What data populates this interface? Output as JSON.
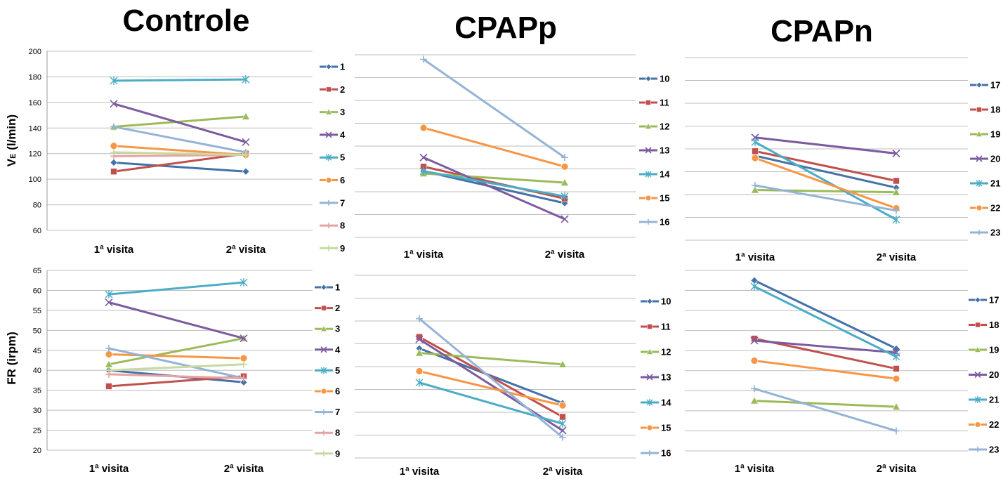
{
  "titles": {
    "controle": "Controle",
    "cpapp": "CPAPp",
    "cpapn": "CPAPn"
  },
  "x_categories": [
    "1ª visita",
    "2ª visita"
  ],
  "series_colors": {
    "1": "#4472a8",
    "2": "#c0504d",
    "3": "#9bbb59",
    "4": "#7c5b9f",
    "5": "#4bacc6",
    "6": "#f79646",
    "7": "#95b3d7",
    "8": "#e6a3a1",
    "9": "#c6d9a0",
    "10": "#4472a8",
    "11": "#c0504d",
    "12": "#9bbb59",
    "13": "#7c5b9f",
    "14": "#4bacc6",
    "15": "#f79646",
    "16": "#95b3d7",
    "17": "#4472a8",
    "18": "#c0504d",
    "19": "#9bbb59",
    "20": "#7c5b9f",
    "21": "#4bacc6",
    "22": "#f79646",
    "23": "#95b3d7"
  },
  "chart_data": [
    {
      "type": "line",
      "group": "Controle",
      "ylabel": "VE (l/min)",
      "x": [
        "1ª visita",
        "2ª visita"
      ],
      "ylim": [
        60,
        200
      ],
      "ytick_step": 20,
      "show_tick_labels": true,
      "series": [
        {
          "name": "1",
          "values": [
            113,
            106
          ]
        },
        {
          "name": "2",
          "values": [
            106,
            120
          ]
        },
        {
          "name": "3",
          "values": [
            141,
            149
          ]
        },
        {
          "name": "4",
          "values": [
            159,
            129
          ]
        },
        {
          "name": "5",
          "values": [
            177,
            178
          ]
        },
        {
          "name": "6",
          "values": [
            126,
            119
          ]
        },
        {
          "name": "7",
          "values": [
            141,
            121
          ]
        },
        {
          "name": "8",
          "values": [
            118,
            119
          ]
        },
        {
          "name": "9",
          "values": [
            121,
            119
          ]
        }
      ]
    },
    {
      "type": "line",
      "group": "CPAPp",
      "x": [
        "1ª visita",
        "2ª visita"
      ],
      "ylim": [
        0,
        8
      ],
      "ytick_step": 1,
      "show_tick_labels": false,
      "series": [
        {
          "name": "10",
          "values": [
            2.9,
            1.5
          ]
        },
        {
          "name": "11",
          "values": [
            3.1,
            1.7
          ]
        },
        {
          "name": "12",
          "values": [
            2.8,
            2.4
          ]
        },
        {
          "name": "13",
          "values": [
            3.5,
            0.8
          ]
        },
        {
          "name": "14",
          "values": [
            2.9,
            1.8
          ]
        },
        {
          "name": "15",
          "values": [
            4.8,
            3.1
          ]
        },
        {
          "name": "16",
          "values": [
            7.8,
            3.5
          ]
        }
      ]
    },
    {
      "type": "line",
      "group": "CPAPn",
      "x": [
        "1ª visita",
        "2ª visita"
      ],
      "ylim": [
        0,
        8
      ],
      "ytick_step": 1,
      "show_tick_labels": false,
      "series": [
        {
          "name": "17",
          "values": [
            3.7,
            2.3
          ]
        },
        {
          "name": "18",
          "values": [
            3.9,
            2.6
          ]
        },
        {
          "name": "19",
          "values": [
            2.2,
            2.1
          ]
        },
        {
          "name": "20",
          "values": [
            4.5,
            3.8
          ]
        },
        {
          "name": "21",
          "values": [
            4.3,
            0.9
          ]
        },
        {
          "name": "22",
          "values": [
            3.6,
            1.4
          ]
        },
        {
          "name": "23",
          "values": [
            2.4,
            1.3
          ]
        }
      ]
    },
    {
      "type": "line",
      "group": "Controle",
      "ylabel": "FR (irpm)",
      "x": [
        "1ª visita",
        "2ª visita"
      ],
      "ylim": [
        20,
        65
      ],
      "ytick_step": 5,
      "show_tick_labels": true,
      "series": [
        {
          "name": "1",
          "values": [
            40,
            37
          ]
        },
        {
          "name": "2",
          "values": [
            36,
            38.5
          ]
        },
        {
          "name": "3",
          "values": [
            41.5,
            48
          ]
        },
        {
          "name": "4",
          "values": [
            57,
            48
          ]
        },
        {
          "name": "5",
          "values": [
            59,
            62
          ]
        },
        {
          "name": "6",
          "values": [
            44,
            43
          ]
        },
        {
          "name": "7",
          "values": [
            45.5,
            38
          ]
        },
        {
          "name": "8",
          "values": [
            39,
            38
          ]
        },
        {
          "name": "9",
          "values": [
            40,
            41.5
          ]
        }
      ]
    },
    {
      "type": "line",
      "group": "CPAPp",
      "x": [
        "1ª visita",
        "2ª visita"
      ],
      "ylim": [
        0,
        8
      ],
      "ytick_step": 1,
      "show_tick_labels": false,
      "series": [
        {
          "name": "10",
          "values": [
            4.8,
            2.4
          ]
        },
        {
          "name": "11",
          "values": [
            5.3,
            1.8
          ]
        },
        {
          "name": "12",
          "values": [
            4.6,
            4.1
          ]
        },
        {
          "name": "13",
          "values": [
            5.2,
            1.2
          ]
        },
        {
          "name": "14",
          "values": [
            3.3,
            1.5
          ]
        },
        {
          "name": "15",
          "values": [
            3.8,
            2.3
          ]
        },
        {
          "name": "16",
          "values": [
            6.1,
            0.9
          ]
        }
      ]
    },
    {
      "type": "line",
      "group": "CPAPn",
      "x": [
        "1ª visita",
        "2ª visita"
      ],
      "ylim": [
        0,
        9
      ],
      "ytick_step": 1,
      "show_tick_labels": false,
      "series": [
        {
          "name": "17",
          "values": [
            8.5,
            5.1
          ]
        },
        {
          "name": "18",
          "values": [
            5.6,
            4.1
          ]
        },
        {
          "name": "19",
          "values": [
            2.5,
            2.2
          ]
        },
        {
          "name": "20",
          "values": [
            5.5,
            4.9
          ]
        },
        {
          "name": "21",
          "values": [
            8.2,
            4.7
          ]
        },
        {
          "name": "22",
          "values": [
            4.5,
            3.6
          ]
        },
        {
          "name": "23",
          "values": [
            3.1,
            1.0
          ]
        }
      ]
    }
  ]
}
